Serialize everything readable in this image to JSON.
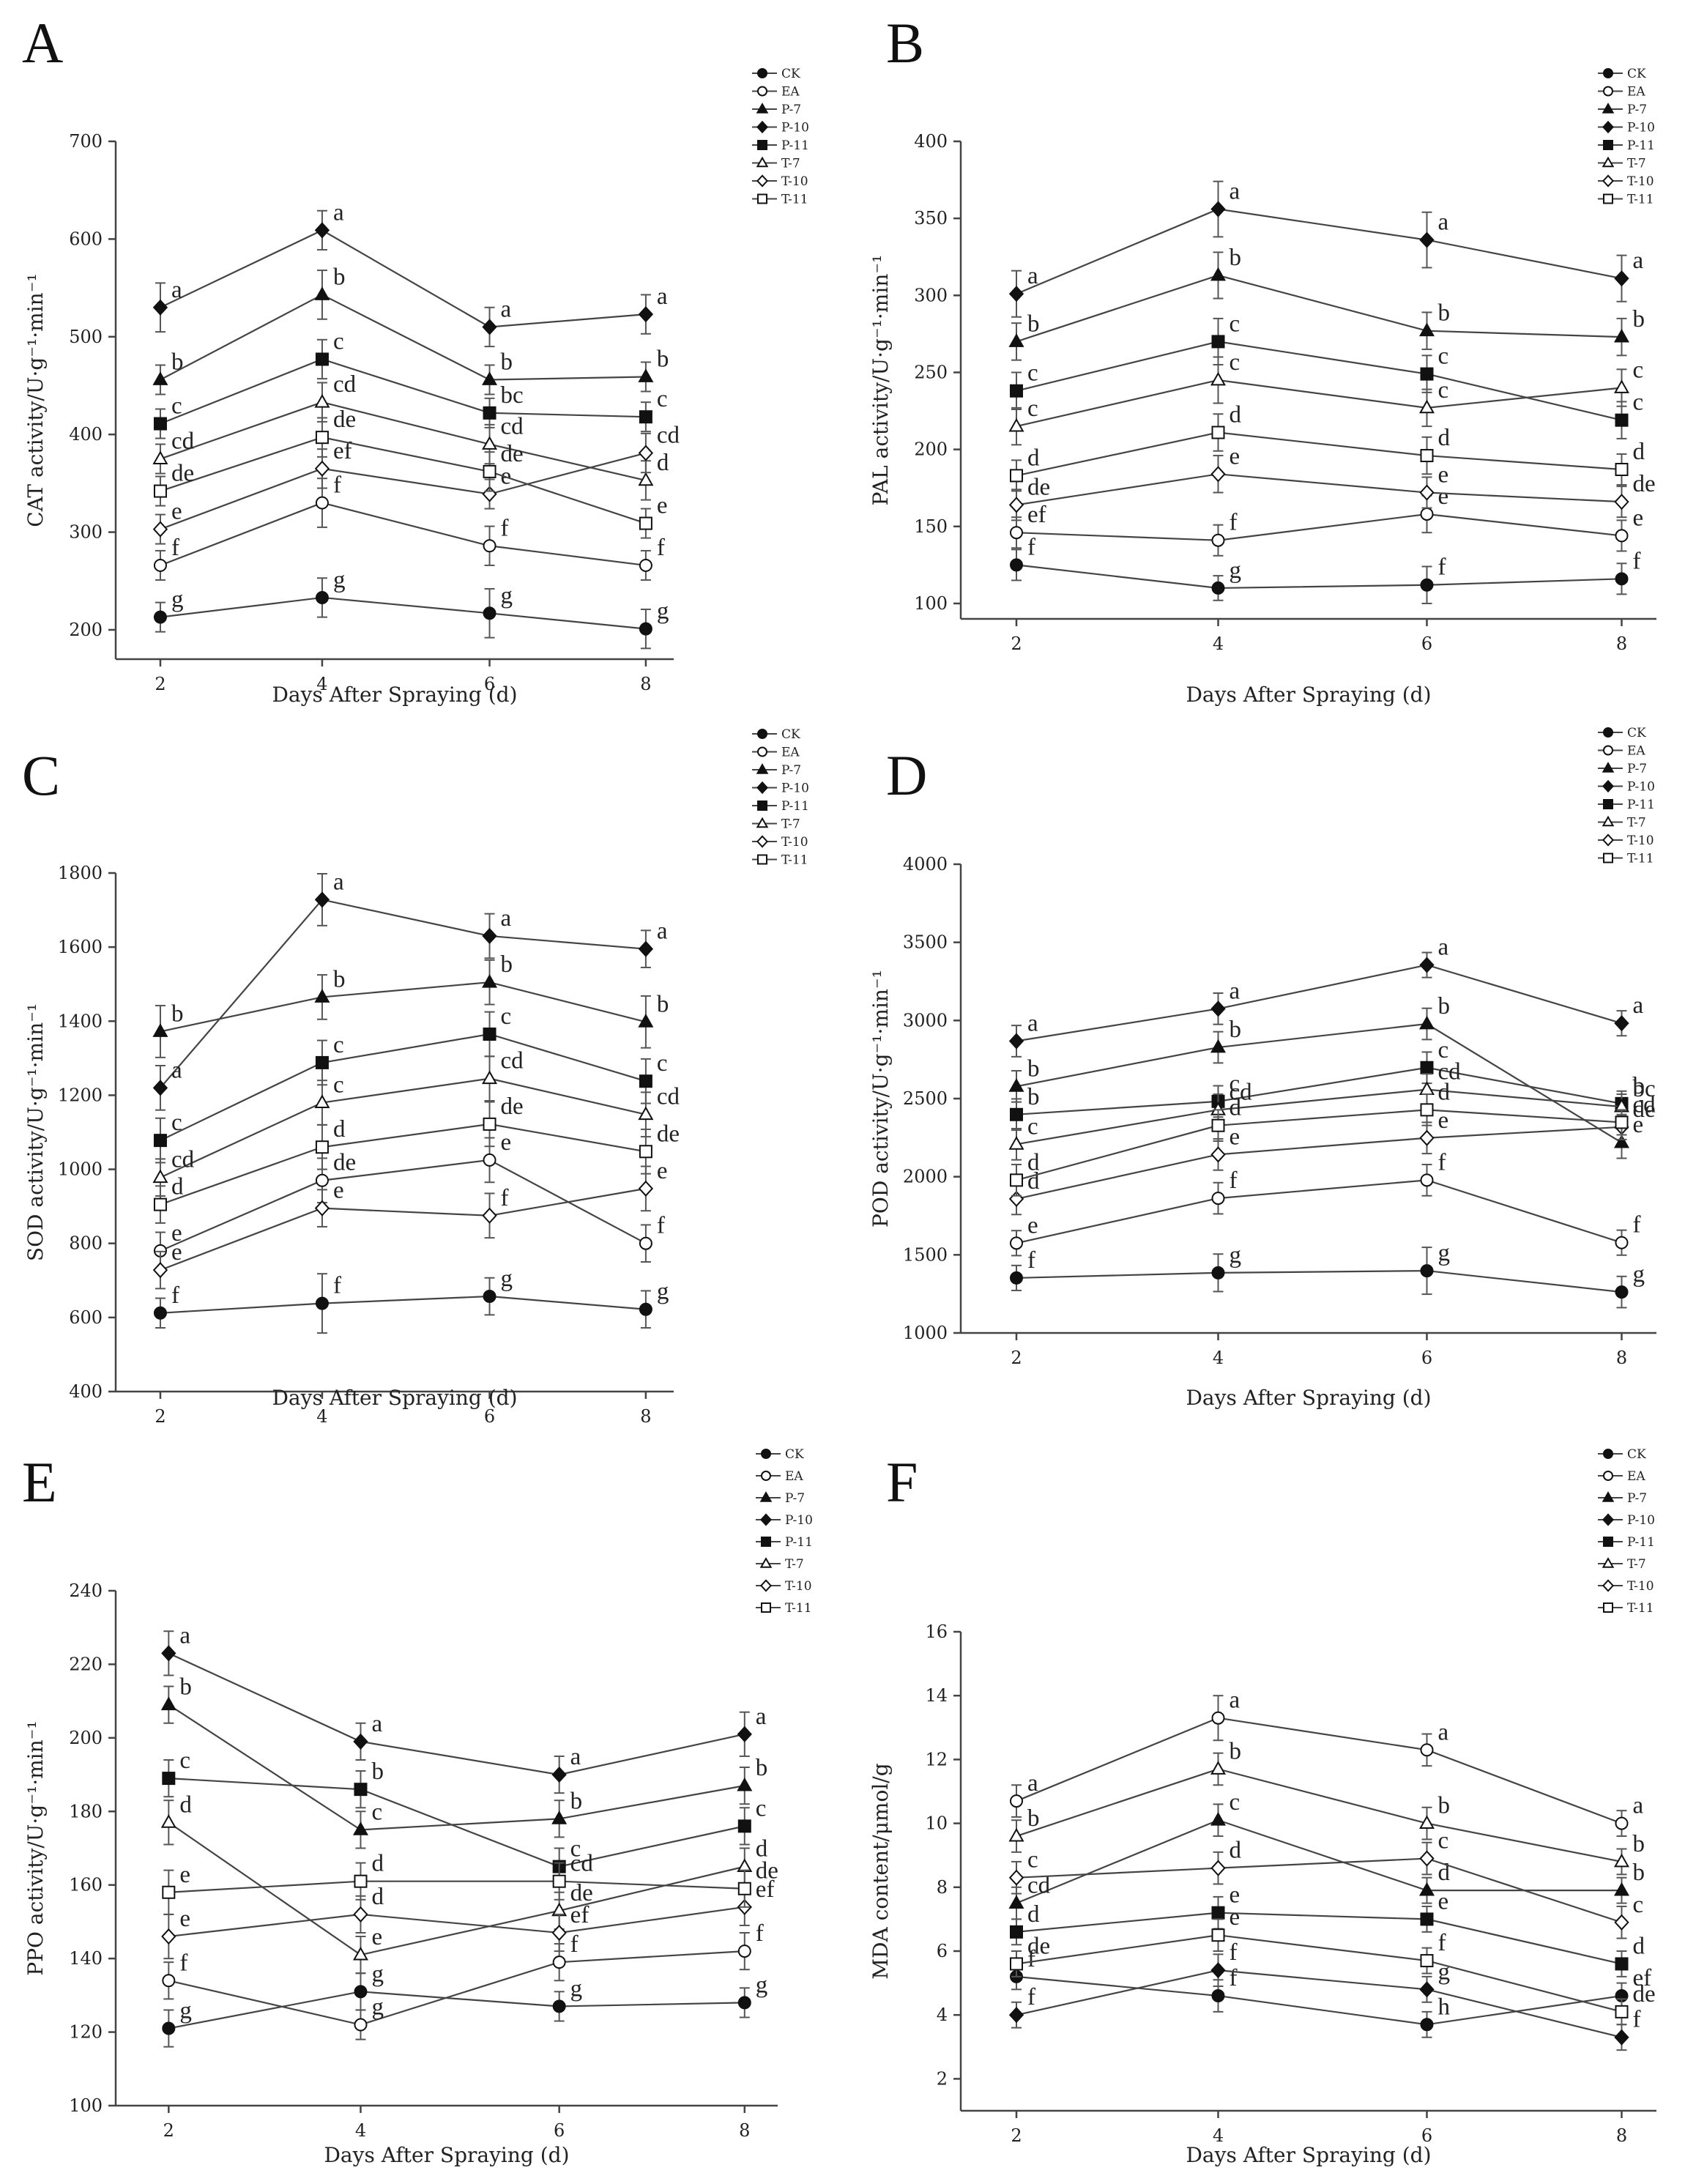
{
  "figure": {
    "x_label": "Days After Spraying (d)",
    "legend_labels": [
      "CK",
      "EA",
      "P-7",
      "P-10",
      "P-11",
      "T-7",
      "T-10",
      "T-11"
    ]
  },
  "styles": {
    "CK": {
      "marker": "circle",
      "filled": true
    },
    "EA": {
      "marker": "circle",
      "filled": false
    },
    "P-7": {
      "marker": "triangle",
      "filled": true
    },
    "P-10": {
      "marker": "diamond",
      "filled": true
    },
    "P-11": {
      "marker": "square",
      "filled": true
    },
    "T-7": {
      "marker": "triangle",
      "filled": false
    },
    "T-10": {
      "marker": "diamond",
      "filled": false
    },
    "T-11": {
      "marker": "square",
      "filled": false
    }
  },
  "chart_data": [
    {
      "panel": "A",
      "type": "line",
      "ylabel": "CAT activity/U·g⁻¹·min⁻¹",
      "x": [
        2,
        4,
        6,
        8
      ],
      "ylim": [
        170,
        700
      ],
      "yticks": [
        200,
        300,
        400,
        500,
        600,
        700
      ],
      "series": [
        {
          "name": "CK",
          "values": [
            213,
            233,
            217,
            201
          ],
          "err": [
            15,
            20,
            25,
            20
          ],
          "letters": [
            "g",
            "g",
            "g",
            "g"
          ]
        },
        {
          "name": "EA",
          "values": [
            266,
            330,
            286,
            266
          ],
          "err": [
            15,
            25,
            20,
            15
          ],
          "letters": [
            "f",
            "f",
            "f",
            "f"
          ]
        },
        {
          "name": "P-7",
          "values": [
            456,
            543,
            456,
            459
          ],
          "err": [
            15,
            25,
            15,
            15
          ],
          "letters": [
            "b",
            "b",
            "b",
            "b"
          ]
        },
        {
          "name": "P-10",
          "values": [
            530,
            609,
            510,
            523
          ],
          "err": [
            25,
            20,
            20,
            20
          ],
          "letters": [
            "a",
            "a",
            "a",
            "a"
          ]
        },
        {
          "name": "P-11",
          "values": [
            411,
            477,
            422,
            418
          ],
          "err": [
            15,
            20,
            15,
            15
          ],
          "letters": [
            "c",
            "c",
            "bc",
            "c"
          ]
        },
        {
          "name": "T-7",
          "values": [
            375,
            433,
            390,
            353
          ],
          "err": [
            15,
            20,
            20,
            20
          ],
          "letters": [
            "cd",
            "cd",
            "cd",
            "d"
          ]
        },
        {
          "name": "T-10",
          "values": [
            303,
            365,
            339,
            381
          ],
          "err": [
            15,
            20,
            15,
            20
          ],
          "letters": [
            "e",
            "ef",
            "e",
            "cd"
          ]
        },
        {
          "name": "T-11",
          "values": [
            342,
            397,
            362,
            309
          ],
          "err": [
            15,
            20,
            20,
            15
          ],
          "letters": [
            "de",
            "de",
            "de",
            "e"
          ]
        }
      ]
    },
    {
      "panel": "B",
      "type": "line",
      "ylabel": "PAL activity/U·g⁻¹·min⁻¹",
      "x": [
        2,
        4,
        6,
        8
      ],
      "ylim": [
        90,
        400
      ],
      "yticks": [
        100,
        150,
        200,
        250,
        300,
        350,
        400
      ],
      "series": [
        {
          "name": "CK",
          "values": [
            125,
            110,
            112,
            116
          ],
          "err": [
            10,
            8,
            12,
            10
          ],
          "letters": [
            "f",
            "g",
            "f",
            "f"
          ]
        },
        {
          "name": "EA",
          "values": [
            146,
            141,
            158,
            144
          ],
          "err": [
            10,
            10,
            12,
            10
          ],
          "letters": [
            "ef",
            "f",
            "e",
            "e"
          ]
        },
        {
          "name": "P-7",
          "values": [
            270,
            313,
            277,
            273
          ],
          "err": [
            12,
            15,
            12,
            12
          ],
          "letters": [
            "b",
            "b",
            "b",
            "b"
          ]
        },
        {
          "name": "P-10",
          "values": [
            301,
            356,
            336,
            311
          ],
          "err": [
            15,
            18,
            18,
            15
          ],
          "letters": [
            "a",
            "a",
            "a",
            "a"
          ]
        },
        {
          "name": "P-11",
          "values": [
            238,
            270,
            249,
            219
          ],
          "err": [
            12,
            15,
            12,
            12
          ],
          "letters": [
            "c",
            "c",
            "c",
            "c"
          ]
        },
        {
          "name": "T-7",
          "values": [
            215,
            245,
            227,
            240
          ],
          "err": [
            12,
            15,
            12,
            12
          ],
          "letters": [
            "c",
            "c",
            "c",
            "c"
          ]
        },
        {
          "name": "T-10",
          "values": [
            164,
            184,
            172,
            166
          ],
          "err": [
            10,
            12,
            10,
            10
          ],
          "letters": [
            "de",
            "e",
            "e",
            "de"
          ]
        },
        {
          "name": "T-11",
          "values": [
            183,
            211,
            196,
            187
          ],
          "err": [
            10,
            12,
            12,
            10
          ],
          "letters": [
            "d",
            "d",
            "d",
            "d"
          ]
        }
      ]
    },
    {
      "panel": "C",
      "type": "line",
      "ylabel": "SOD activity/U·g⁻¹·min⁻¹",
      "x": [
        2,
        4,
        6,
        8
      ],
      "ylim": [
        400,
        1800
      ],
      "yticks": [
        400,
        600,
        800,
        1000,
        1200,
        1400,
        1600,
        1800
      ],
      "series": [
        {
          "name": "CK",
          "values": [
            612,
            638,
            657,
            622
          ],
          "err": [
            40,
            80,
            50,
            50
          ],
          "letters": [
            "f",
            "f",
            "g",
            "g"
          ]
        },
        {
          "name": "EA",
          "values": [
            780,
            970,
            1025,
            800
          ],
          "err": [
            50,
            60,
            60,
            50
          ],
          "letters": [
            "e",
            "de",
            "e",
            "f"
          ]
        },
        {
          "name": "P-7",
          "values": [
            1372,
            1465,
            1505,
            1398
          ],
          "err": [
            70,
            60,
            60,
            70
          ],
          "letters": [
            "b",
            "b",
            "b",
            "b"
          ]
        },
        {
          "name": "P-10",
          "values": [
            1220,
            1728,
            1630,
            1595
          ],
          "err": [
            60,
            70,
            60,
            50
          ],
          "letters": [
            "a",
            "a",
            "a",
            "a"
          ]
        },
        {
          "name": "P-11",
          "values": [
            1078,
            1288,
            1365,
            1238
          ],
          "err": [
            60,
            60,
            60,
            60
          ],
          "letters": [
            "c",
            "c",
            "c",
            "c"
          ]
        },
        {
          "name": "T-7",
          "values": [
            978,
            1180,
            1245,
            1148
          ],
          "err": [
            50,
            60,
            60,
            60
          ],
          "letters": [
            "cd",
            "c",
            "cd",
            "cd"
          ]
        },
        {
          "name": "T-10",
          "values": [
            728,
            895,
            875,
            948
          ],
          "err": [
            50,
            50,
            60,
            60
          ],
          "letters": [
            "e",
            "e",
            "f",
            "e"
          ]
        },
        {
          "name": "T-11",
          "values": [
            905,
            1060,
            1122,
            1048
          ],
          "err": [
            50,
            60,
            60,
            60
          ],
          "letters": [
            "d",
            "d",
            "de",
            "de"
          ]
        }
      ]
    },
    {
      "panel": "D",
      "type": "line",
      "ylabel": "POD activity/U·g⁻¹·min⁻¹",
      "x": [
        2,
        4,
        6,
        8
      ],
      "ylim": [
        1000,
        4000
      ],
      "yticks": [
        1000,
        1500,
        2000,
        2500,
        3000,
        3500,
        4000
      ],
      "series": [
        {
          "name": "CK",
          "values": [
            1352,
            1385,
            1398,
            1262
          ],
          "err": [
            80,
            120,
            150,
            100
          ],
          "letters": [
            "f",
            "g",
            "g",
            "g"
          ]
        },
        {
          "name": "EA",
          "values": [
            1575,
            1862,
            1978,
            1578
          ],
          "err": [
            80,
            100,
            100,
            80
          ],
          "letters": [
            "e",
            "f",
            "f",
            "f"
          ]
        },
        {
          "name": "P-7",
          "values": [
            2578,
            2828,
            2978,
            2218
          ],
          "err": [
            100,
            100,
            100,
            100
          ],
          "letters": [
            "b",
            "b",
            "b",
            "e"
          ]
        },
        {
          "name": "P-10",
          "values": [
            2868,
            3075,
            3355,
            2982
          ],
          "err": [
            100,
            100,
            80,
            80
          ],
          "letters": [
            "a",
            "a",
            "a",
            "a"
          ]
        },
        {
          "name": "P-11",
          "values": [
            2398,
            2482,
            2698,
            2468
          ],
          "err": [
            100,
            100,
            100,
            80
          ],
          "letters": [
            "b",
            "c",
            "c",
            "b"
          ]
        },
        {
          "name": "T-7",
          "values": [
            2208,
            2428,
            2558,
            2448
          ],
          "err": [
            100,
            100,
            100,
            80
          ],
          "letters": [
            "c",
            "cd",
            "cd",
            "bc"
          ]
        },
        {
          "name": "T-10",
          "values": [
            1858,
            2142,
            2248,
            2318
          ],
          "err": [
            100,
            100,
            100,
            80
          ],
          "letters": [
            "d",
            "e",
            "e",
            "de"
          ]
        },
        {
          "name": "T-11",
          "values": [
            1978,
            2328,
            2428,
            2348
          ],
          "err": [
            100,
            100,
            100,
            80
          ],
          "letters": [
            "d",
            "d",
            "d",
            "cd"
          ]
        }
      ]
    },
    {
      "panel": "E",
      "type": "line",
      "ylabel": "PPO activity/U·g⁻¹·min⁻¹",
      "x": [
        2,
        4,
        6,
        8
      ],
      "ylim": [
        100,
        240
      ],
      "yticks": [
        100,
        120,
        140,
        160,
        180,
        200,
        220,
        240
      ],
      "series": [
        {
          "name": "CK",
          "values": [
            121,
            131,
            127,
            128
          ],
          "err": [
            5,
            5,
            4,
            4
          ],
          "letters": [
            "g",
            "g",
            "g",
            "g"
          ]
        },
        {
          "name": "EA",
          "values": [
            134,
            122,
            139,
            142
          ],
          "err": [
            5,
            4,
            5,
            5
          ],
          "letters": [
            "f",
            "g",
            "f",
            "f"
          ]
        },
        {
          "name": "P-7",
          "values": [
            209,
            175,
            178,
            187
          ],
          "err": [
            5,
            5,
            5,
            5
          ],
          "letters": [
            "b",
            "c",
            "b",
            "b"
          ]
        },
        {
          "name": "P-10",
          "values": [
            223,
            199,
            190,
            201
          ],
          "err": [
            6,
            5,
            5,
            6
          ],
          "letters": [
            "a",
            "a",
            "a",
            "a"
          ]
        },
        {
          "name": "P-11",
          "values": [
            189,
            186,
            165,
            176
          ],
          "err": [
            5,
            5,
            5,
            5
          ],
          "letters": [
            "c",
            "b",
            "c",
            "c"
          ]
        },
        {
          "name": "T-7",
          "values": [
            177,
            141,
            153,
            165
          ],
          "err": [
            6,
            5,
            5,
            5
          ],
          "letters": [
            "d",
            "e",
            "de",
            "d"
          ]
        },
        {
          "name": "T-10",
          "values": [
            146,
            152,
            147,
            154
          ],
          "err": [
            6,
            5,
            5,
            5
          ],
          "letters": [
            "e",
            "d",
            "ef",
            "ef"
          ]
        },
        {
          "name": "T-11",
          "values": [
            158,
            161,
            161,
            159
          ],
          "err": [
            6,
            5,
            5,
            5
          ],
          "letters": [
            "e",
            "d",
            "cd",
            "de"
          ]
        }
      ]
    },
    {
      "panel": "F",
      "type": "line",
      "ylabel": "MDA content/μmol/g",
      "x": [
        2,
        4,
        6,
        8
      ],
      "ylim": [
        1,
        16
      ],
      "yticks": [
        2,
        4,
        6,
        8,
        10,
        12,
        14,
        16
      ],
      "series": [
        {
          "name": "CK",
          "values": [
            5.2,
            4.6,
            3.7,
            4.6
          ],
          "err": [
            0.4,
            0.5,
            0.4,
            0.4
          ],
          "letters": [
            "f",
            "f",
            "h",
            "ef"
          ]
        },
        {
          "name": "EA",
          "values": [
            10.7,
            13.3,
            12.3,
            10.0
          ],
          "err": [
            0.5,
            0.7,
            0.5,
            0.4
          ],
          "letters": [
            "a",
            "a",
            "a",
            "a"
          ]
        },
        {
          "name": "P-7",
          "values": [
            7.5,
            10.1,
            7.9,
            7.9
          ],
          "err": [
            0.5,
            0.5,
            0.4,
            0.4
          ],
          "letters": [
            "cd",
            "c",
            "d",
            "b"
          ]
        },
        {
          "name": "P-10",
          "values": [
            4.0,
            5.4,
            4.8,
            3.3
          ],
          "err": [
            0.4,
            0.5,
            0.4,
            0.4
          ],
          "letters": [
            "f",
            "f",
            "g",
            "f"
          ]
        },
        {
          "name": "P-11",
          "values": [
            6.6,
            7.2,
            7.0,
            5.6
          ],
          "err": [
            0.4,
            0.5,
            0.4,
            0.4
          ],
          "letters": [
            "d",
            "e",
            "e",
            "d"
          ]
        },
        {
          "name": "T-7",
          "values": [
            9.6,
            11.7,
            10.0,
            8.8
          ],
          "err": [
            0.5,
            0.5,
            0.5,
            0.4
          ],
          "letters": [
            "b",
            "b",
            "b",
            "b"
          ]
        },
        {
          "name": "T-10",
          "values": [
            8.3,
            8.6,
            8.9,
            6.9
          ],
          "err": [
            0.5,
            0.5,
            0.5,
            0.5
          ],
          "letters": [
            "c",
            "d",
            "c",
            "c"
          ]
        },
        {
          "name": "T-11",
          "values": [
            5.6,
            6.5,
            5.7,
            4.1
          ],
          "err": [
            0.4,
            0.5,
            0.4,
            0.4
          ],
          "letters": [
            "de",
            "e",
            "f",
            "de"
          ]
        }
      ]
    }
  ]
}
